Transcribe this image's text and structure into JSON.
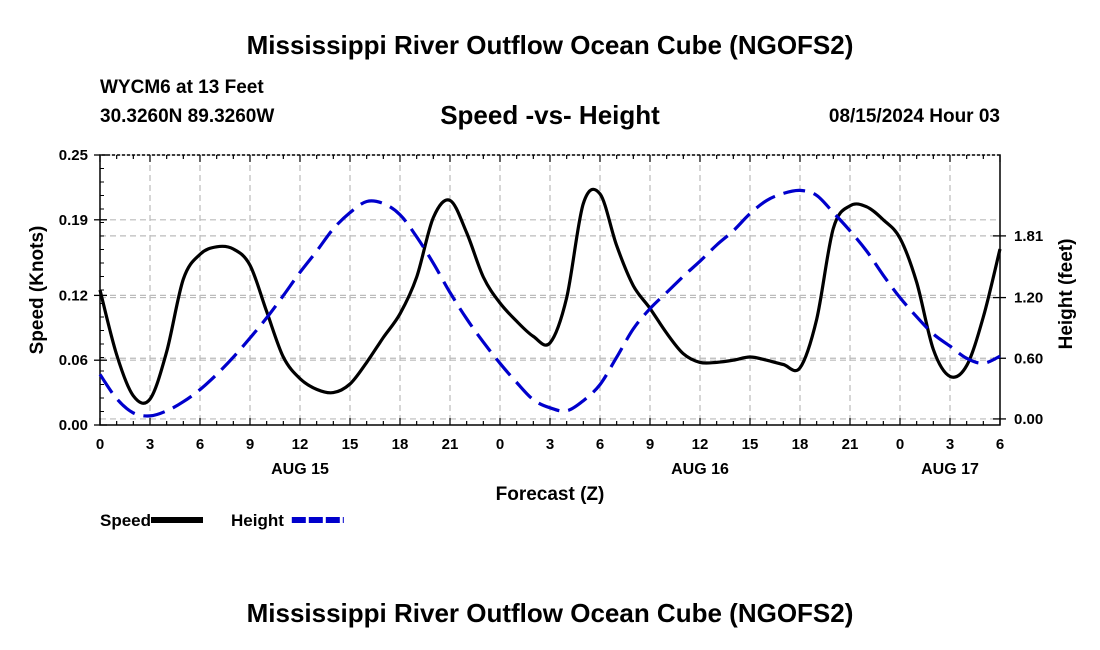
{
  "header": {
    "title": "Mississippi River Outflow Ocean Cube (NGOFS2)",
    "station": "WYCM6 at 13 Feet",
    "coords": "30.3260N  89.3260W",
    "subtitle": "Speed -vs- Height",
    "run_time": "08/15/2024 Hour 03"
  },
  "footer": {
    "title": "Mississippi River Outflow Ocean Cube (NGOFS2)"
  },
  "chart_data": {
    "type": "line",
    "xlabel": "Forecast (Z)",
    "ylabel_left": "Speed (Knots)",
    "ylabel_right": "Height (feet)",
    "x_range_hours": [
      0,
      54
    ],
    "x_tick_hours": [
      0,
      3,
      6,
      9,
      12,
      15,
      18,
      21,
      24,
      27,
      30,
      33,
      36,
      39,
      42,
      45,
      48,
      51,
      54
    ],
    "x_tick_labels": [
      "0",
      "3",
      "6",
      "9",
      "12",
      "15",
      "18",
      "21",
      "0",
      "3",
      "6",
      "9",
      "12",
      "15",
      "18",
      "21",
      "0",
      "3",
      "6"
    ],
    "date_labels": [
      {
        "hour": 12,
        "label": "AUG 15"
      },
      {
        "hour": 36,
        "label": "AUG 16"
      },
      {
        "hour": 51,
        "label": "AUG 17"
      }
    ],
    "ylim_left": [
      0,
      0.25
    ],
    "y_ticks_left": [
      0,
      0.06,
      0.12,
      0.19,
      0.25
    ],
    "y_tick_labels_left": [
      "0.00",
      "0.06",
      "0.12",
      "0.19",
      "0.25"
    ],
    "ylim_right": [
      -0.06,
      2.61
    ],
    "y_ticks_right": [
      0,
      0.6,
      1.2,
      1.81
    ],
    "y_tick_labels_right": [
      "0.00",
      "0.60",
      "1.20",
      "1.81"
    ],
    "series": [
      {
        "name": "Speed",
        "axis": "left",
        "color": "#000000",
        "dashed": false,
        "x": [
          0,
          1,
          2,
          3,
          4,
          5,
          6,
          7,
          8,
          9,
          10,
          11,
          12,
          13,
          14,
          15,
          16,
          17,
          18,
          19,
          20,
          21,
          22,
          23,
          24,
          25,
          26,
          27,
          28,
          29,
          30,
          31,
          32,
          33,
          34,
          35,
          36,
          37,
          38,
          39,
          40,
          41,
          42,
          43,
          44,
          45,
          46,
          47,
          48,
          49,
          50,
          51,
          52,
          53,
          54
        ],
        "values": [
          0.125,
          0.065,
          0.027,
          0.024,
          0.068,
          0.135,
          0.158,
          0.165,
          0.163,
          0.148,
          0.105,
          0.063,
          0.043,
          0.033,
          0.03,
          0.038,
          0.058,
          0.081,
          0.103,
          0.137,
          0.192,
          0.208,
          0.178,
          0.137,
          0.113,
          0.096,
          0.082,
          0.076,
          0.118,
          0.205,
          0.214,
          0.166,
          0.129,
          0.108,
          0.085,
          0.066,
          0.058,
          0.058,
          0.06,
          0.063,
          0.06,
          0.056,
          0.053,
          0.098,
          0.182,
          0.203,
          0.202,
          0.19,
          0.173,
          0.132,
          0.07,
          0.045,
          0.055,
          0.1,
          0.163
        ]
      },
      {
        "name": "Height",
        "axis": "right",
        "color": "#0000cc",
        "dashed": true,
        "x": [
          0,
          1,
          2,
          3,
          4,
          5,
          6,
          7,
          8,
          9,
          10,
          11,
          12,
          13,
          14,
          15,
          16,
          17,
          18,
          19,
          20,
          21,
          22,
          23,
          24,
          25,
          26,
          27,
          28,
          29,
          30,
          31,
          32,
          33,
          34,
          35,
          36,
          37,
          38,
          39,
          40,
          41,
          42,
          43,
          44,
          45,
          46,
          47,
          48,
          49,
          50,
          51,
          52,
          53,
          54
        ],
        "values": [
          0.44,
          0.2,
          0.06,
          0.03,
          0.08,
          0.17,
          0.29,
          0.44,
          0.61,
          0.8,
          1.0,
          1.22,
          1.45,
          1.66,
          1.88,
          2.04,
          2.15,
          2.13,
          2.02,
          1.8,
          1.54,
          1.25,
          0.99,
          0.76,
          0.55,
          0.36,
          0.19,
          0.11,
          0.08,
          0.18,
          0.34,
          0.61,
          0.89,
          1.09,
          1.25,
          1.41,
          1.56,
          1.72,
          1.86,
          2.03,
          2.16,
          2.23,
          2.26,
          2.21,
          2.04,
          1.86,
          1.66,
          1.42,
          1.2,
          1.01,
          0.84,
          0.72,
          0.6,
          0.55,
          0.62
        ]
      }
    ],
    "legend": [
      {
        "label": "Speed",
        "color": "#000000",
        "dashed": false
      },
      {
        "label": "Height",
        "color": "#0000cc",
        "dashed": true
      }
    ]
  }
}
